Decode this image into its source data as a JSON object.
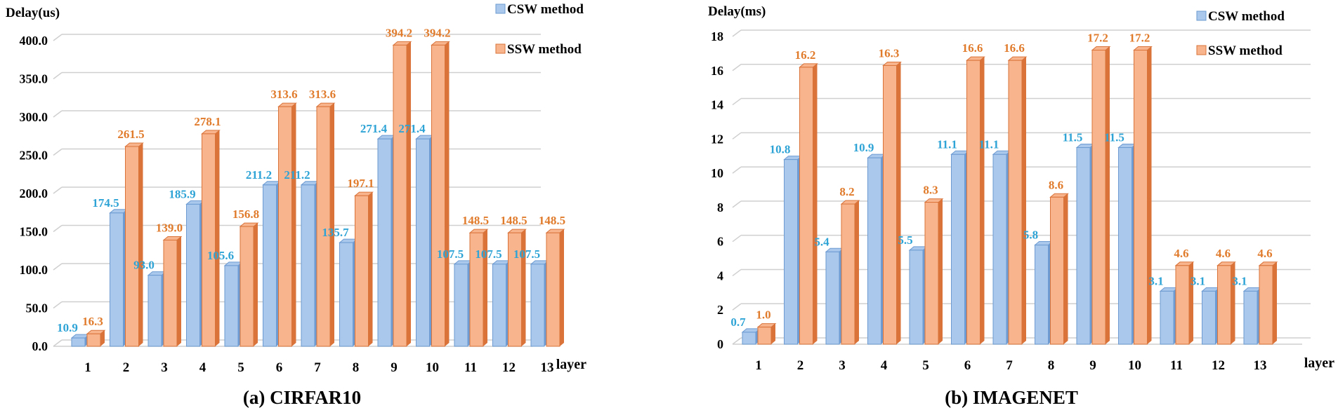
{
  "colors": {
    "csw": "#a9c8ec",
    "csw_dark": "#6d9bd2",
    "csw_label": "#2ea3d5",
    "ssw": "#f8b48c",
    "ssw_dark": "#d9733a",
    "ssw_label": "#e07b2c",
    "grid": "#cfcfcf",
    "text": "#000000"
  },
  "chart_data": [
    {
      "type": "bar",
      "caption": "(a)  CIRFAR10",
      "ylabel": "Delay(us)",
      "xlabel": "layer",
      "ylim": [
        0,
        400
      ],
      "yticks": [
        "0.0",
        "50.0",
        "100.0",
        "150.0",
        "200.0",
        "250.0",
        "300.0",
        "350.0",
        "400.0"
      ],
      "categories": [
        "1",
        "2",
        "3",
        "4",
        "5",
        "6",
        "7",
        "8",
        "9",
        "10",
        "11",
        "12",
        "13"
      ],
      "decimals": 1,
      "legend_position": "top-right",
      "grid": true,
      "series": [
        {
          "name": "CSW method",
          "values": [
            10.9,
            174.5,
            93.0,
            185.9,
            105.6,
            211.2,
            211.2,
            135.7,
            271.4,
            271.4,
            107.5,
            107.5,
            107.5
          ]
        },
        {
          "name": "SSW method",
          "values": [
            16.3,
            261.5,
            139.0,
            278.1,
            156.8,
            313.6,
            313.6,
            197.1,
            394.2,
            394.2,
            148.5,
            148.5,
            148.5
          ]
        }
      ]
    },
    {
      "type": "bar",
      "caption": "(b)   IMAGENET",
      "ylabel": "Delay(ms)",
      "xlabel": "layer",
      "ylim": [
        0,
        18
      ],
      "yticks": [
        "0",
        "2",
        "4",
        "6",
        "8",
        "10",
        "12",
        "14",
        "16",
        "18"
      ],
      "categories": [
        "1",
        "2",
        "3",
        "4",
        "5",
        "6",
        "7",
        "8",
        "9",
        "10",
        "11",
        "12",
        "13"
      ],
      "decimals": 1,
      "legend_position": "top-right",
      "grid": true,
      "series": [
        {
          "name": "CSW method",
          "values": [
            0.7,
            10.8,
            5.4,
            10.9,
            5.5,
            11.1,
            11.1,
            5.8,
            11.5,
            11.5,
            3.1,
            3.1,
            3.1
          ]
        },
        {
          "name": "SSW method",
          "values": [
            1.0,
            16.2,
            8.2,
            16.3,
            8.3,
            16.6,
            16.6,
            8.6,
            17.2,
            17.2,
            4.6,
            4.6,
            4.6
          ]
        }
      ]
    }
  ]
}
